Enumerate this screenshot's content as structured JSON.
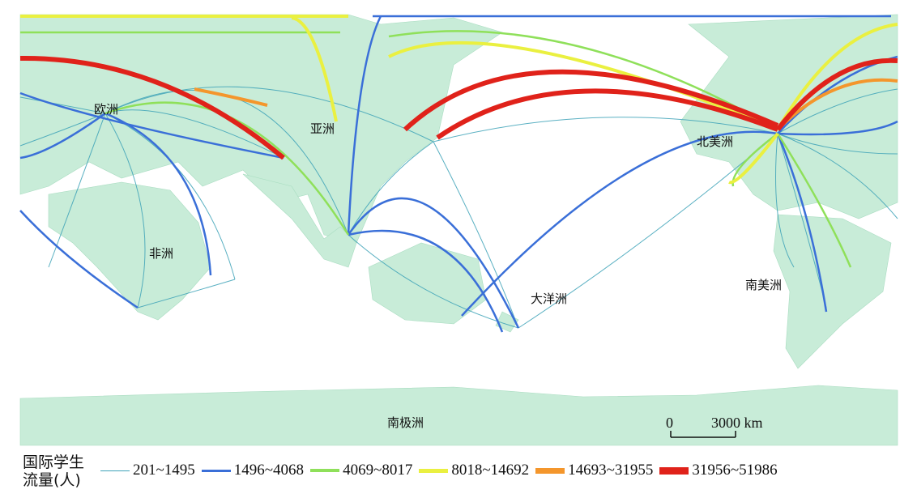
{
  "map": {
    "continents": {
      "europe": "欧洲",
      "asia": "亚洲",
      "africa": "非洲",
      "north_america": "北美洲",
      "south_america": "南美洲",
      "oceania": "大洋洲",
      "antarctica": "南极洲"
    },
    "scale_bar": {
      "zero": "0",
      "value": "3000 km"
    },
    "colors": {
      "land": "#c8ecd8",
      "ocean": "#ffffff",
      "border": "#9ccfb4"
    }
  },
  "legend": {
    "title": "国际学生流量(人)",
    "title_line1": "国际学生",
    "title_line2": "流量(人)",
    "classes": [
      {
        "label": "201~1495",
        "color": "#3ea3b8"
      },
      {
        "label": "1496~4068",
        "color": "#3a6fd8"
      },
      {
        "label": "4069~8017",
        "color": "#8fe05a"
      },
      {
        "label": "8018~14692",
        "color": "#eaf040"
      },
      {
        "label": "14693~31955",
        "color": "#f4962c"
      },
      {
        "label": "31956~51986",
        "color": "#e0221a"
      }
    ]
  }
}
